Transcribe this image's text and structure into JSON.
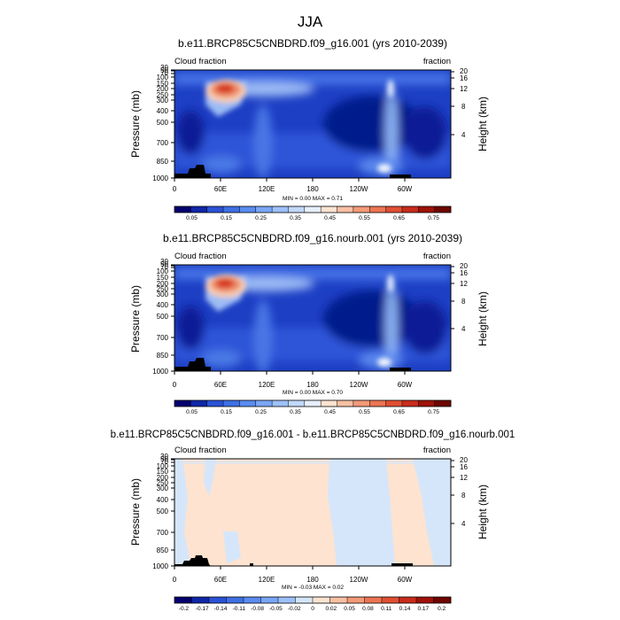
{
  "page_title": "JJA",
  "chart_data": [
    {
      "type": "heatmap",
      "title": "b.e11.BRCP85C5CNBDRD.f09_g16.001 (yrs 2010-2039)",
      "left_label": "Cloud fraction",
      "right_label": "fraction",
      "ylabel": "Pressure (mb)",
      "y2label": "Height (km)",
      "xticks": [
        "0",
        "60E",
        "120E",
        "180",
        "120W",
        "60W"
      ],
      "yticks": [
        "1000",
        "850",
        "700",
        "500",
        "400",
        "300",
        "250",
        "200",
        "150",
        "100",
        "70",
        "50",
        "30"
      ],
      "y2ticks": [
        "4",
        "8",
        "12",
        "16",
        "20"
      ],
      "stats": "MIN = 0.00 MAX = 0.71",
      "min": 0.0,
      "max": 0.71,
      "colorbar_labels": [
        "0.05",
        "0.15",
        "0.25",
        "0.35",
        "0.45",
        "0.55",
        "0.65",
        "0.75"
      ],
      "colorbar_colors": [
        "#04006e",
        "#0f27a8",
        "#2a52d6",
        "#3f6fe4",
        "#5a8cf0",
        "#7aa6f6",
        "#9dc0f8",
        "#c2d8fa",
        "#e6eefc",
        "#fde3d0",
        "#f8c0a4",
        "#f39a78",
        "#ec7552",
        "#e04f34",
        "#c82c1c",
        "#9e1208",
        "#6e0600"
      ]
    },
    {
      "type": "heatmap",
      "title": "b.e11.BRCP85C5CNBDRD.f09_g16.nourb.001 (yrs 2010-2039)",
      "left_label": "Cloud fraction",
      "right_label": "fraction",
      "ylabel": "Pressure (mb)",
      "y2label": "Height (km)",
      "xticks": [
        "0",
        "60E",
        "120E",
        "180",
        "120W",
        "60W"
      ],
      "yticks": [
        "1000",
        "850",
        "700",
        "500",
        "400",
        "300",
        "250",
        "200",
        "150",
        "100",
        "70",
        "50",
        "30"
      ],
      "y2ticks": [
        "4",
        "8",
        "12",
        "16",
        "20"
      ],
      "stats": "MIN = 0.00 MAX = 0.70",
      "min": 0.0,
      "max": 0.7,
      "colorbar_labels": [
        "0.05",
        "0.15",
        "0.25",
        "0.35",
        "0.45",
        "0.55",
        "0.65",
        "0.75"
      ],
      "colorbar_colors": [
        "#04006e",
        "#0f27a8",
        "#2a52d6",
        "#3f6fe4",
        "#5a8cf0",
        "#7aa6f6",
        "#9dc0f8",
        "#c2d8fa",
        "#e6eefc",
        "#fde3d0",
        "#f8c0a4",
        "#f39a78",
        "#ec7552",
        "#e04f34",
        "#c82c1c",
        "#9e1208",
        "#6e0600"
      ]
    },
    {
      "type": "heatmap",
      "title": "b.e11.BRCP85C5CNBDRD.f09_g16.001 - b.e11.BRCP85C5CNBDRD.f09_g16.nourb.001",
      "left_label": "Cloud fraction",
      "right_label": "fraction",
      "ylabel": "Pressure (mb)",
      "y2label": "Height (km)",
      "xticks": [
        "0",
        "60E",
        "120E",
        "180",
        "120W",
        "60W"
      ],
      "yticks": [
        "1000",
        "850",
        "700",
        "500",
        "400",
        "300",
        "250",
        "200",
        "150",
        "100",
        "70",
        "50",
        "30"
      ],
      "y2ticks": [
        "4",
        "8",
        "12",
        "16",
        "20"
      ],
      "stats": "MIN = -0.03 MAX = 0.02",
      "min": -0.03,
      "max": 0.02,
      "colorbar_labels": [
        "-0.2",
        "-0.17",
        "-0.14",
        "-0.11",
        "-0.08",
        "-0.05",
        "-0.02",
        "0",
        "0.02",
        "0.05",
        "0.08",
        "0.11",
        "0.14",
        "0.17",
        "0.2"
      ],
      "colorbar_colors": [
        "#04006e",
        "#0f27a8",
        "#2a52d6",
        "#3f6fe4",
        "#5a8cf0",
        "#7aa6f6",
        "#9dc0f8",
        "#d6e6fa",
        "#fde3d0",
        "#f8c0a4",
        "#f39a78",
        "#ec7552",
        "#e04f34",
        "#c82c1c",
        "#9e1208",
        "#6e0600"
      ]
    }
  ]
}
